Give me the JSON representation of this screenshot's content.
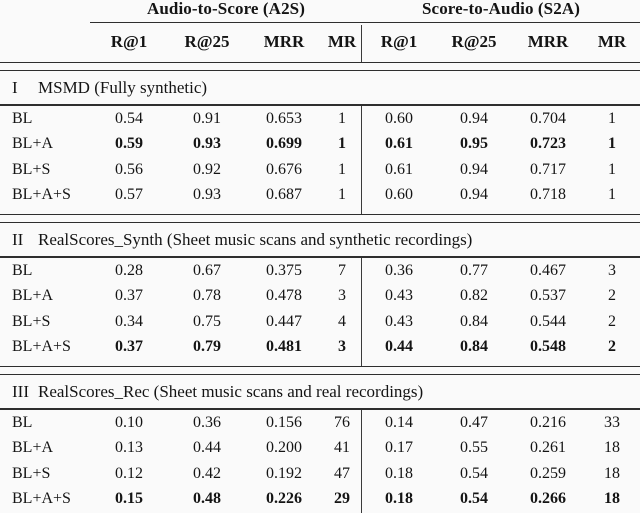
{
  "table": {
    "groups": [
      {
        "label": "Audio-to-Score (A2S)"
      },
      {
        "label": "Score-to-Audio (S2A)"
      }
    ],
    "metric_headers": [
      "R@1",
      "R@25",
      "MRR",
      "MR",
      "R@1",
      "R@25",
      "MRR",
      "MR"
    ],
    "sections": [
      {
        "numeral": "I",
        "title": "MSMD (Fully synthetic)",
        "rows": [
          {
            "label": "BL",
            "bold": false,
            "values": [
              "0.54",
              "0.91",
              "0.653",
              "1",
              "0.60",
              "0.94",
              "0.704",
              "1"
            ]
          },
          {
            "label": "BL+A",
            "bold": true,
            "values": [
              "0.59",
              "0.93",
              "0.699",
              "1",
              "0.61",
              "0.95",
              "0.723",
              "1"
            ]
          },
          {
            "label": "BL+S",
            "bold": false,
            "values": [
              "0.56",
              "0.92",
              "0.676",
              "1",
              "0.61",
              "0.94",
              "0.717",
              "1"
            ]
          },
          {
            "label": "BL+A+S",
            "bold": false,
            "values": [
              "0.57",
              "0.93",
              "0.687",
              "1",
              "0.60",
              "0.94",
              "0.718",
              "1"
            ]
          }
        ]
      },
      {
        "numeral": "II",
        "title": "RealScores_Synth (Sheet music scans and synthetic recordings)",
        "rows": [
          {
            "label": "BL",
            "bold": false,
            "values": [
              "0.28",
              "0.67",
              "0.375",
              "7",
              "0.36",
              "0.77",
              "0.467",
              "3"
            ]
          },
          {
            "label": "BL+A",
            "bold": false,
            "values": [
              "0.37",
              "0.78",
              "0.478",
              "3",
              "0.43",
              "0.82",
              "0.537",
              "2"
            ]
          },
          {
            "label": "BL+S",
            "bold": false,
            "values": [
              "0.34",
              "0.75",
              "0.447",
              "4",
              "0.43",
              "0.84",
              "0.544",
              "2"
            ]
          },
          {
            "label": "BL+A+S",
            "bold": true,
            "values": [
              "0.37",
              "0.79",
              "0.481",
              "3",
              "0.44",
              "0.84",
              "0.548",
              "2"
            ]
          }
        ]
      },
      {
        "numeral": "III",
        "title": "RealScores_Rec (Sheet music scans and real recordings)",
        "rows": [
          {
            "label": "BL",
            "bold": false,
            "values": [
              "0.10",
              "0.36",
              "0.156",
              "76",
              "0.14",
              "0.47",
              "0.216",
              "33"
            ]
          },
          {
            "label": "BL+A",
            "bold": false,
            "values": [
              "0.13",
              "0.44",
              "0.200",
              "41",
              "0.17",
              "0.55",
              "0.261",
              "18"
            ]
          },
          {
            "label": "BL+S",
            "bold": false,
            "values": [
              "0.12",
              "0.42",
              "0.192",
              "47",
              "0.18",
              "0.54",
              "0.259",
              "18"
            ]
          },
          {
            "label": "BL+A+S",
            "bold": true,
            "values": [
              "0.15",
              "0.48",
              "0.226",
              "29",
              "0.18",
              "0.54",
              "0.266",
              "18"
            ]
          }
        ]
      }
    ]
  }
}
